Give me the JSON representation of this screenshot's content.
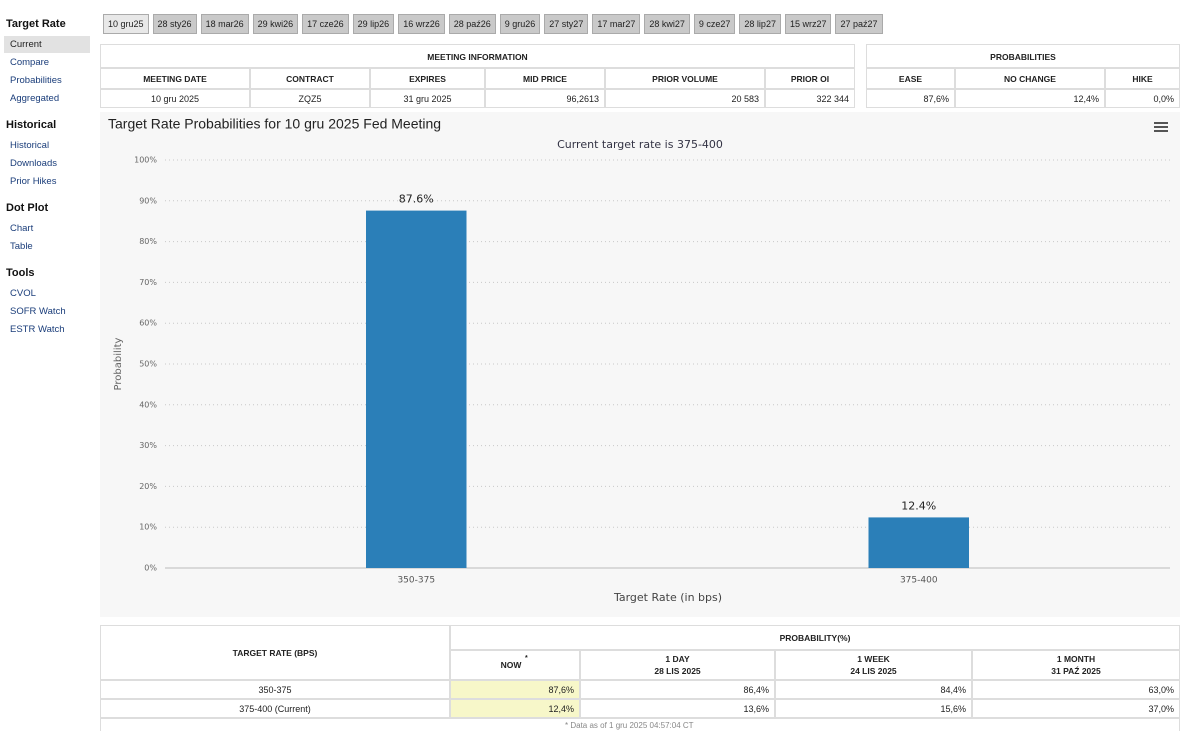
{
  "sidebar": [
    {
      "title": "Target Rate",
      "items": [
        "Current",
        "Compare",
        "Probabilities",
        "Aggregated"
      ]
    },
    {
      "title": "Historical",
      "items": [
        "Historical",
        "Downloads",
        "Prior Hikes"
      ]
    },
    {
      "title": "Dot Plot",
      "items": [
        "Chart",
        "Table"
      ]
    },
    {
      "title": "Tools",
      "items": [
        "CVOL",
        "SOFR Watch",
        "ESTR Watch"
      ]
    }
  ],
  "tabs": [
    "10 gru25",
    "28 sty26",
    "18 mar26",
    "29 kwi26",
    "17 cze26",
    "29 lip26",
    "16 wrz26",
    "28 paź26",
    "9 gru26",
    "27 sty27",
    "17 mar27",
    "28 kwi27",
    "9 cze27",
    "28 lip27",
    "15 wrz27",
    "27 paź27"
  ],
  "meeting_info": {
    "title": "MEETING INFORMATION",
    "columns": [
      "MEETING DATE",
      "CONTRACT",
      "EXPIRES",
      "MID PRICE",
      "PRIOR VOLUME",
      "PRIOR OI"
    ],
    "row": [
      "10 gru 2025",
      "ZQZ5",
      "31 gru 2025",
      "96,2613",
      "20 583",
      "322 344"
    ]
  },
  "probabilities": {
    "title": "PROBABILITIES",
    "columns": [
      "EASE",
      "NO CHANGE",
      "HIKE"
    ],
    "row": [
      "87,6%",
      "12,4%",
      "0,0%"
    ]
  },
  "chart_data": {
    "type": "bar",
    "title": "Target Rate Probabilities for 10 gru 2025 Fed Meeting",
    "subtitle": "Current target rate is 375-400",
    "y_label": "Probability",
    "x_label": "Target Rate (in bps)",
    "categories": [
      "350-375",
      "375-400"
    ],
    "values": [
      87.6,
      12.4
    ],
    "value_labels": [
      "87.6%",
      "12.4%"
    ],
    "color": "#2b7fb8",
    "ylim": [
      0,
      100
    ],
    "yticks": [
      {
        "value": 0,
        "label": "0%"
      },
      {
        "value": 10,
        "label": "10%"
      },
      {
        "value": 20,
        "label": "20%"
      },
      {
        "value": 30,
        "label": "30%"
      },
      {
        "value": 40,
        "label": "40%"
      },
      {
        "value": 50,
        "label": "50%"
      },
      {
        "value": 60,
        "label": "60%"
      },
      {
        "value": 70,
        "label": "70%"
      },
      {
        "value": 80,
        "label": "80%"
      },
      {
        "value": 90,
        "label": "90%"
      },
      {
        "value": 100,
        "label": "100%"
      }
    ],
    "grid": true
  },
  "history_table": {
    "row_header": "TARGET RATE (BPS)",
    "title": "PROBABILITY(%)",
    "columns": [
      {
        "label": "NOW",
        "note": "*"
      },
      {
        "label": "1 DAY",
        "date": "28 LIS 2025"
      },
      {
        "label": "1 WEEK",
        "date": "24 LIS 2025"
      },
      {
        "label": "1 MONTH",
        "date": "31 PAŹ 2025"
      }
    ],
    "rows": [
      [
        "350-375",
        "87,6%",
        "86,4%",
        "84,4%",
        "63,0%"
      ],
      [
        "375-400 (Current)",
        "12,4%",
        "13,6%",
        "15,6%",
        "37,0%"
      ]
    ],
    "footnote": "* Data as of 1 gru 2025 04:57:04 CT"
  }
}
